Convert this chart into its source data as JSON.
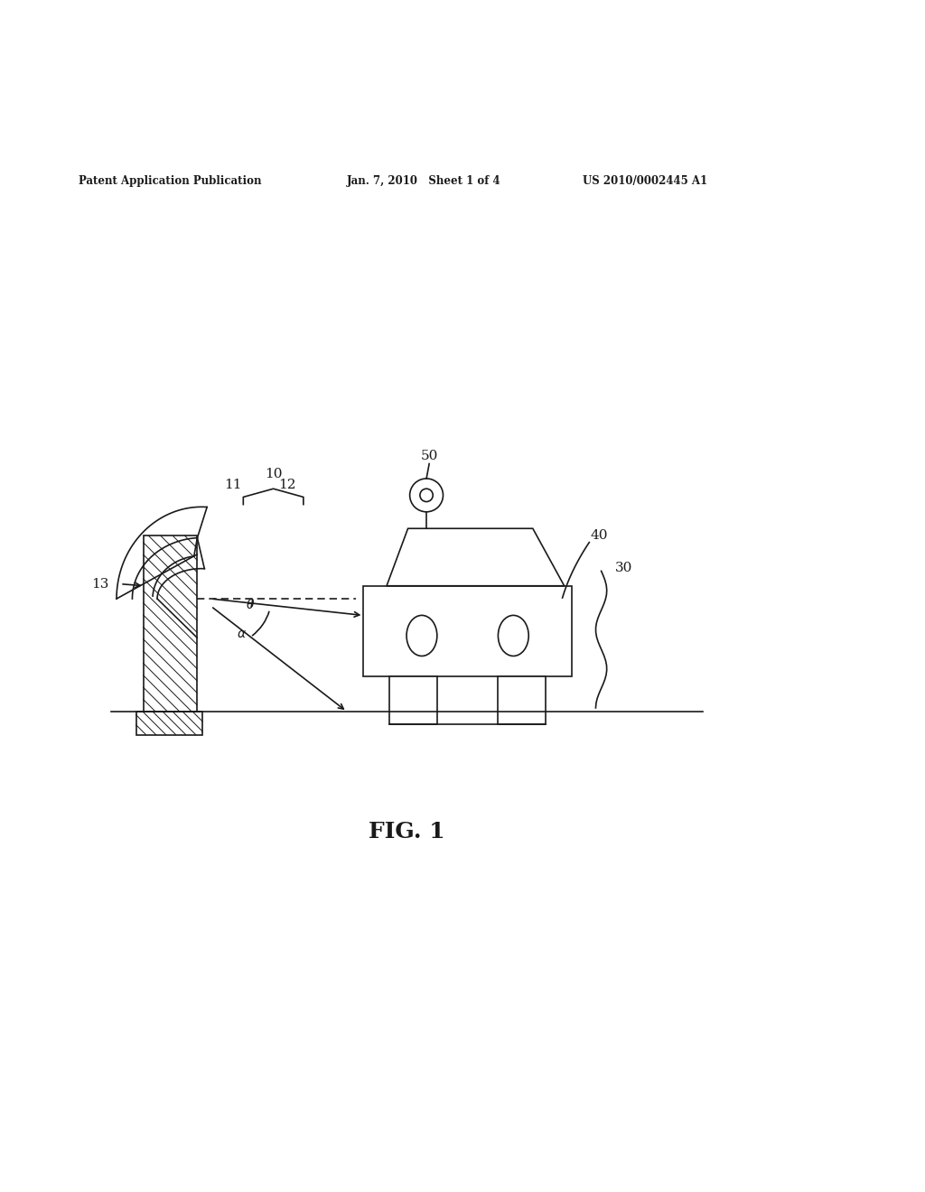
{
  "bg_color": "#ffffff",
  "line_color": "#1a1a1a",
  "fig_width": 10.24,
  "fig_height": 13.2,
  "header_left": "Patent Application Publication",
  "header_mid": "Jan. 7, 2010   Sheet 1 of 4",
  "header_right": "US 2010/0002445 A1",
  "footer_label": "FIG. 1"
}
